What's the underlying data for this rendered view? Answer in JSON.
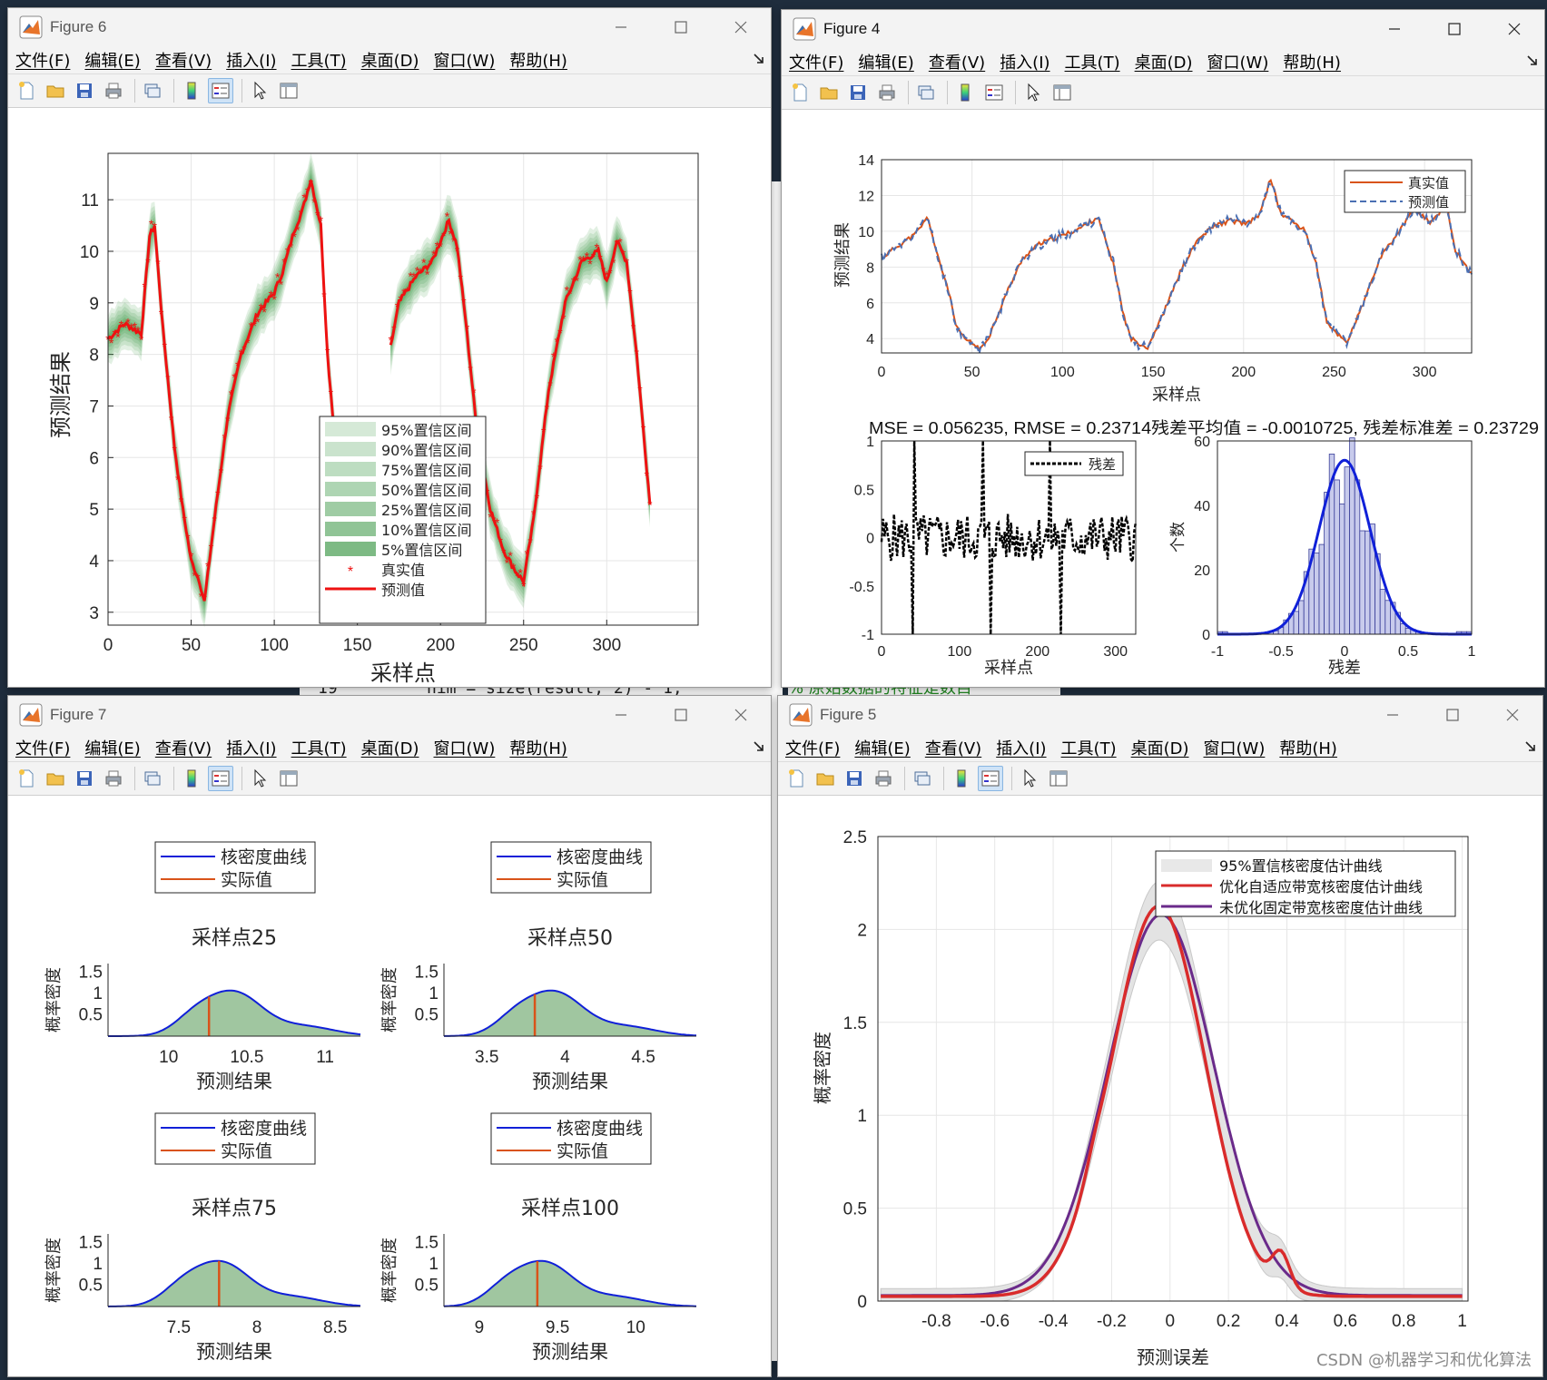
{
  "menu": [
    "文件(F)",
    "编辑(E)",
    "查看(V)",
    "插入(I)",
    "工具(T)",
    "桌面(D)",
    "窗口(W)",
    "帮助(H)"
  ],
  "background_code": {
    "line_number": "19",
    "code": "nim = size(result, 2) - 1;",
    "comment": "% 原始数据的特征是数目"
  },
  "watermark": "CSDN @机器学习和优化算法",
  "fig6": {
    "title": "Figure 6",
    "xlabel": "采样点",
    "ylabel": "预测结果",
    "xticks": [
      "0",
      "50",
      "100",
      "150",
      "200",
      "250",
      "300"
    ],
    "yticks": [
      "3",
      "4",
      "5",
      "6",
      "7",
      "8",
      "9",
      "10",
      "11"
    ],
    "legend": [
      "95%置信区间",
      "90%置信区间",
      "75%置信区间",
      "50%置信区间",
      "25%置信区间",
      "10%置信区间",
      "5%置信区间",
      "真实值",
      "预测值"
    ],
    "colors": {
      "band": "#3f9a4a",
      "pred": "#ee1111"
    }
  },
  "fig4": {
    "title": "Figure 4",
    "top": {
      "xlabel": "采样点",
      "ylabel": "预测结果",
      "xticks": [
        "0",
        "50",
        "100",
        "150",
        "200",
        "250",
        "300"
      ],
      "yticks": [
        "4",
        "6",
        "8",
        "10",
        "12",
        "14"
      ],
      "legend": [
        "真实值",
        "预测值"
      ],
      "colors": {
        "true": "#d95319",
        "pred": "#4a6fb3"
      }
    },
    "stats": "MSE = 0.056235, RMSE = 0.23714残差平均值 = -0.0010725, 残差标准差 = 0.23729",
    "residual": {
      "xlabel": "采样点",
      "xticks": [
        "0",
        "100",
        "200",
        "300"
      ],
      "yticks": [
        "-1",
        "-0.5",
        "0",
        "0.5",
        "1"
      ],
      "legend": [
        "残差"
      ]
    },
    "hist": {
      "xlabel": "残差",
      "ylabel": "个数",
      "xticks": [
        "-1",
        "-0.5",
        "0",
        "0.5",
        "1"
      ],
      "yticks": [
        "0",
        "20",
        "40",
        "60"
      ]
    }
  },
  "fig7": {
    "title": "Figure 7",
    "legend": [
      "核密度曲线",
      "实际值"
    ],
    "xlabel": "预测结果",
    "ylabel": "概率密度",
    "yticks": [
      "0.5",
      "1",
      "1.5"
    ],
    "subplots": [
      {
        "title": "采样点25",
        "xticks": [
          "10",
          "10.5",
          "11"
        ]
      },
      {
        "title": "采样点50",
        "xticks": [
          "3.5",
          "4",
          "4.5"
        ]
      },
      {
        "title": "采样点75",
        "xticks": [
          "7.5",
          "8",
          "8.5"
        ]
      },
      {
        "title": "采样点100",
        "xticks": [
          "9",
          "9.5",
          "10"
        ]
      }
    ]
  },
  "fig5": {
    "title": "Figure 5",
    "xlabel": "预测误差",
    "ylabel": "概率密度",
    "xticks": [
      "-0.8",
      "-0.6",
      "-0.4",
      "-0.2",
      "0",
      "0.2",
      "0.4",
      "0.6",
      "0.8",
      "1"
    ],
    "yticks": [
      "0",
      "0.5",
      "1",
      "1.5",
      "2",
      "2.5"
    ],
    "legend": [
      "95%置信核密度估计曲线",
      "优化自适应带宽核密度估计曲线",
      "未优化固定带宽核密度估计曲线"
    ],
    "colors": {
      "opt": "#d92b2b",
      "fixed": "#6a2a8a",
      "band": "#e3e3e3"
    }
  }
}
